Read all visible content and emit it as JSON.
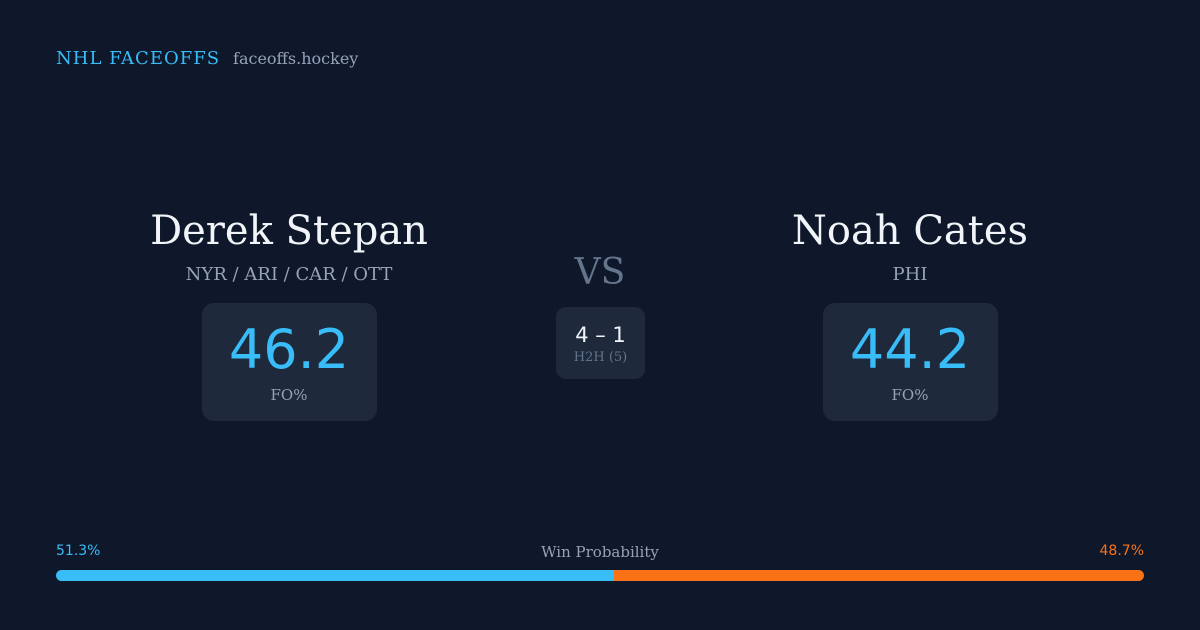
{
  "brand": {
    "name": "NHL FACEOFFS",
    "site": "faceoffs.hockey"
  },
  "players": [
    {
      "name": "Derek Stepan",
      "teams": "NYR / ARI / CAR / OTT",
      "fo_pct": "46.2",
      "fo_label": "FO%"
    },
    {
      "name": "Noah Cates",
      "teams": "PHI",
      "fo_pct": "44.2",
      "fo_label": "FO%"
    }
  ],
  "versus": {
    "label": "VS",
    "h2h_score": "4 – 1",
    "h2h_label": "H2H (5)"
  },
  "win_probability": {
    "title": "Win Probability",
    "left_label": "51.3%",
    "right_label": "48.7%",
    "left_fraction": 0.513,
    "colors": {
      "left": "#38bdf8",
      "right": "#f97316"
    }
  }
}
